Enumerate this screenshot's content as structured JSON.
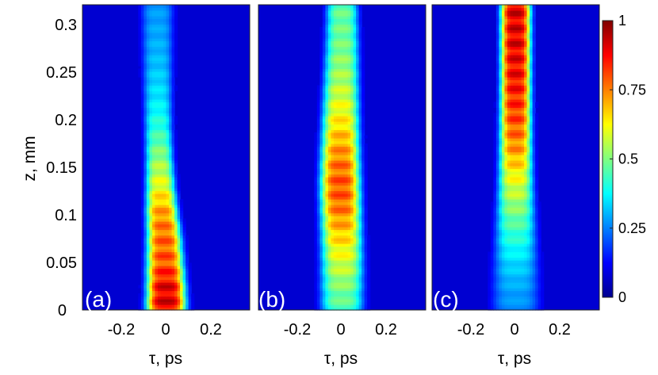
{
  "chart_data": [
    {
      "type": "heatmap",
      "panel_label": "(a)",
      "xlabel": "τ, ps",
      "ylabel": "z, mm",
      "x_ticks": [
        "-0.2",
        "0",
        "0.2"
      ],
      "y_ticks": [
        "0",
        "0.05",
        "0.1",
        "0.15",
        "0.2",
        "0.25",
        "0.3"
      ],
      "xlim": [
        -0.37,
        0.37
      ],
      "ylim": [
        0,
        0.32
      ],
      "profile": {
        "z": [
          0,
          0.02,
          0.05,
          0.08,
          0.1,
          0.13,
          0.16,
          0.19,
          0.22,
          0.26,
          0.3,
          0.32
        ],
        "peak": [
          0.95,
          0.97,
          0.85,
          0.82,
          0.78,
          0.65,
          0.55,
          0.45,
          0.38,
          0.33,
          0.3,
          0.29
        ],
        "center": [
          0.0,
          0.0,
          -0.005,
          -0.01,
          -0.018,
          -0.025,
          -0.03,
          -0.034,
          -0.036,
          -0.037,
          -0.038,
          -0.038
        ],
        "width": [
          0.085,
          0.082,
          0.078,
          0.072,
          0.068,
          0.062,
          0.058,
          0.058,
          0.06,
          0.063,
          0.066,
          0.068
        ]
      }
    },
    {
      "type": "heatmap",
      "panel_label": "(b)",
      "xlabel": "τ, ps",
      "x_ticks": [
        "-0.2",
        "0",
        "0.2"
      ],
      "xlim": [
        -0.37,
        0.37
      ],
      "ylim": [
        0,
        0.32
      ],
      "profile": {
        "z": [
          0,
          0.02,
          0.05,
          0.08,
          0.11,
          0.13,
          0.16,
          0.2,
          0.24,
          0.28,
          0.32
        ],
        "peak": [
          0.48,
          0.52,
          0.62,
          0.72,
          0.82,
          0.85,
          0.8,
          0.68,
          0.58,
          0.52,
          0.5
        ],
        "center": [
          0.0,
          0.0,
          0.0,
          -0.003,
          -0.006,
          -0.008,
          -0.008,
          -0.006,
          -0.003,
          0.0,
          0.0
        ],
        "width": [
          0.09,
          0.09,
          0.088,
          0.086,
          0.085,
          0.085,
          0.082,
          0.078,
          0.074,
          0.07,
          0.066
        ]
      }
    },
    {
      "type": "heatmap",
      "panel_label": "(c)",
      "xlabel": "τ, ps",
      "x_ticks": [
        "-0.2",
        "0",
        "0.2"
      ],
      "xlim": [
        -0.37,
        0.37
      ],
      "ylim": [
        0,
        0.32
      ],
      "profile": {
        "z": [
          0,
          0.02,
          0.05,
          0.08,
          0.11,
          0.14,
          0.17,
          0.2,
          0.24,
          0.28,
          0.32
        ],
        "peak": [
          0.28,
          0.3,
          0.36,
          0.45,
          0.55,
          0.66,
          0.78,
          0.86,
          0.93,
          0.96,
          0.97
        ],
        "center": [
          0.0,
          0.0,
          0.0,
          0.0,
          0.0,
          0.0,
          0.0,
          0.0,
          0.0,
          0.0,
          0.0
        ],
        "width": [
          0.1,
          0.098,
          0.092,
          0.085,
          0.078,
          0.072,
          0.068,
          0.066,
          0.064,
          0.064,
          0.064
        ]
      }
    }
  ],
  "colorbar": {
    "ticks": [
      "0",
      "0.25",
      "0.5",
      "0.75",
      "1"
    ],
    "tick_values": [
      0.0,
      0.25,
      0.5,
      0.75,
      1.0
    ],
    "colormap": "jet"
  }
}
